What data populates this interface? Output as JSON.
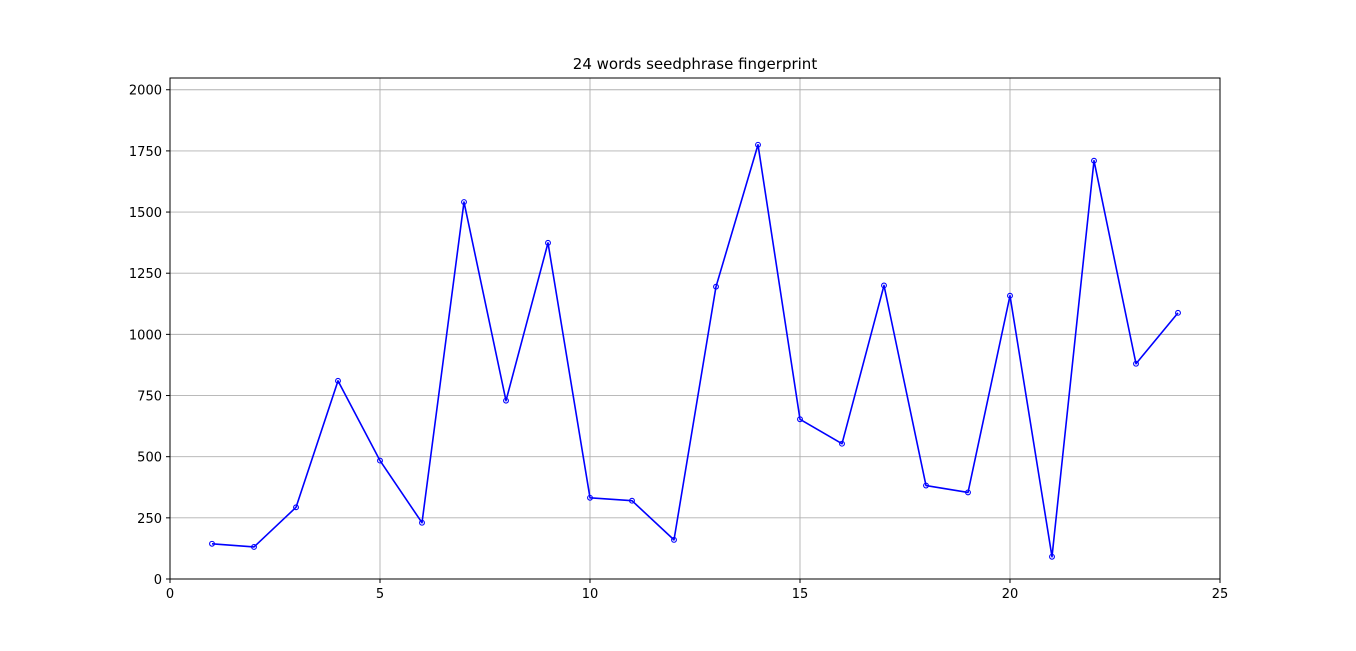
{
  "chart_data": {
    "type": "line",
    "title": "24 words seedphrase fingerprint",
    "xlabel": "",
    "ylabel": "",
    "xlim": [
      0,
      25
    ],
    "ylim": [
      0,
      2048
    ],
    "x_ticks": [
      0,
      5,
      10,
      15,
      20,
      25
    ],
    "y_ticks": [
      0,
      250,
      500,
      750,
      1000,
      1250,
      1500,
      1750,
      2000
    ],
    "grid": true,
    "line_color": "#0000ff",
    "series": [
      {
        "x": [
          1,
          2,
          3,
          4,
          5,
          6,
          7,
          8,
          9,
          10,
          11,
          12,
          13,
          14,
          15,
          16,
          17,
          18,
          19,
          20,
          21,
          22,
          23,
          24
        ],
        "values": [
          144,
          131,
          293,
          810,
          484,
          230,
          1541,
          729,
          1374,
          332,
          320,
          160,
          1195,
          1775,
          653,
          553,
          1200,
          382,
          354,
          1158,
          91,
          1710,
          880,
          1088
        ]
      }
    ]
  }
}
